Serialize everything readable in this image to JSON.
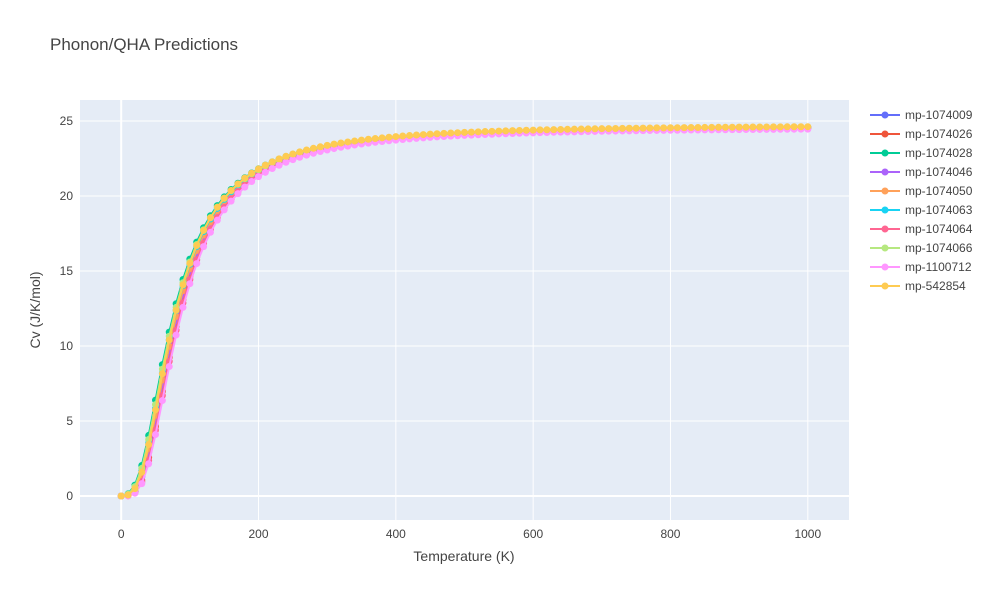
{
  "chart_data": {
    "type": "line",
    "title": "Phonon/QHA Predictions",
    "xlabel": "Temperature (K)",
    "ylabel": "Cv (J/K/mol)",
    "xlim": [
      -60,
      1060
    ],
    "ylim": [
      -1.6,
      26.4
    ],
    "x_ticks": [
      0,
      200,
      400,
      600,
      800,
      1000
    ],
    "y_ticks": [
      0,
      5,
      10,
      15,
      20,
      25
    ],
    "grid": true,
    "legend_position": "right",
    "x": [
      0,
      10,
      20,
      30,
      40,
      50,
      60,
      70,
      80,
      90,
      100,
      110,
      120,
      130,
      140,
      150,
      160,
      170,
      180,
      190,
      200,
      210,
      220,
      230,
      240,
      250,
      260,
      270,
      280,
      290,
      300,
      310,
      320,
      330,
      340,
      350,
      360,
      370,
      380,
      390,
      400,
      410,
      420,
      430,
      440,
      450,
      460,
      470,
      480,
      490,
      500,
      510,
      520,
      530,
      540,
      550,
      560,
      570,
      580,
      590,
      600,
      610,
      620,
      630,
      640,
      650,
      660,
      670,
      680,
      690,
      700,
      710,
      720,
      730,
      740,
      750,
      760,
      770,
      780,
      790,
      800,
      810,
      820,
      830,
      840,
      850,
      860,
      870,
      880,
      890,
      900,
      910,
      920,
      930,
      940,
      950,
      960,
      970,
      980,
      990,
      1000
    ],
    "series": [
      {
        "name": "mp-1074009",
        "color": "#636efa",
        "shift": 0.5,
        "scale": 0.992,
        "ymax": 24.7
      },
      {
        "name": "mp-1074026",
        "color": "#ef553b",
        "shift": 2.5,
        "scale": 0.988,
        "ymax": 24.7
      },
      {
        "name": "mp-1074028",
        "color": "#00cc96",
        "shift": -3.5,
        "scale": 1.015,
        "ymax": 24.7
      },
      {
        "name": "mp-1074046",
        "color": "#ab63fa",
        "shift": 1.0,
        "scale": 0.995,
        "ymax": 24.7
      },
      {
        "name": "mp-1074050",
        "color": "#ffa15a",
        "shift": 0.0,
        "scale": 1.0,
        "ymax": 24.7
      },
      {
        "name": "mp-1074063",
        "color": "#19d3f3",
        "shift": -1.5,
        "scale": 1.008,
        "ymax": 24.7
      },
      {
        "name": "mp-1074064",
        "color": "#ff6692",
        "shift": 3.5,
        "scale": 0.985,
        "ymax": 24.65
      },
      {
        "name": "mp-1074066",
        "color": "#b6e880",
        "shift": -2.5,
        "scale": 1.01,
        "ymax": 24.7
      },
      {
        "name": "mp-1100712",
        "color": "#ff97ff",
        "shift": 4.5,
        "scale": 0.978,
        "ymax": 24.6
      },
      {
        "name": "mp-542854",
        "color": "#fecb52",
        "shift": -0.5,
        "scale": 1.02,
        "ymax": 24.75
      }
    ]
  }
}
